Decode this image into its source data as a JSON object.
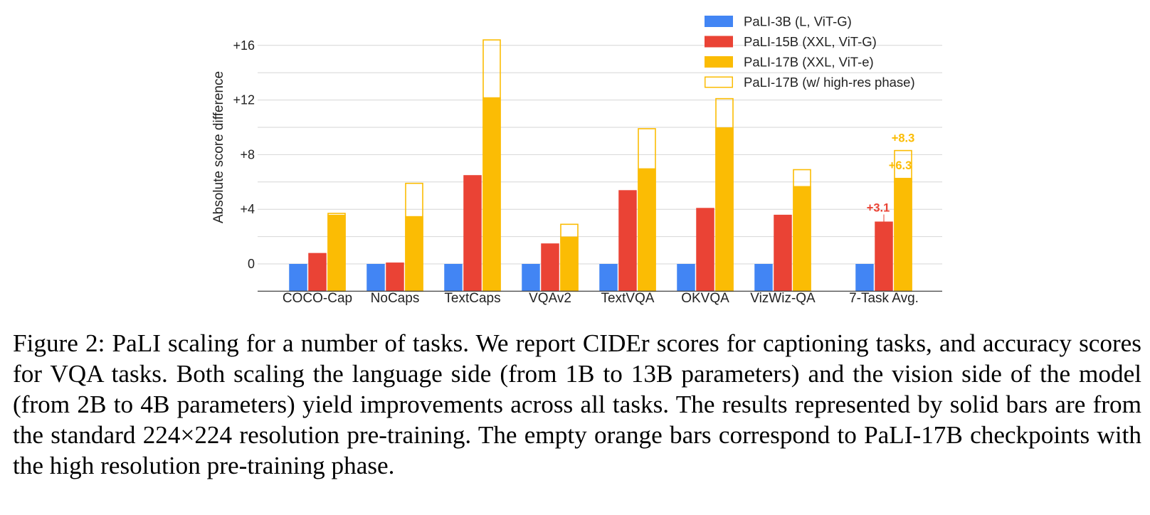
{
  "chart_data": {
    "type": "bar",
    "ylabel": "Absolute score difference",
    "xlabel": "",
    "ylim": [
      -2,
      17.6
    ],
    "yticks": [
      0,
      4,
      8,
      12,
      16
    ],
    "ytick_labels": [
      "0",
      "+4",
      "+8",
      "+12",
      "+16"
    ],
    "grid": true,
    "grid_step": 2,
    "legend_position": "top-right",
    "categories": [
      "COCO-Cap",
      "NoCaps",
      "TextCaps",
      "VQAv2",
      "TextVQA",
      "OKVQA",
      "VizWiz-QA",
      "7-Task Avg."
    ],
    "series": [
      {
        "name": "PaLI-3B (L, ViT-G)",
        "style": "solid",
        "color": "#4285F4",
        "values": [
          0,
          0,
          0,
          0,
          0,
          0,
          0,
          0
        ]
      },
      {
        "name": "PaLI-15B (XXL, ViT-G)",
        "style": "solid",
        "color": "#EA4335",
        "values": [
          0.8,
          0.1,
          6.5,
          1.5,
          5.4,
          4.1,
          3.6,
          3.1
        ]
      },
      {
        "name": "PaLI-17B (XXL, ViT-e)",
        "style": "solid",
        "color": "#FBBC04",
        "values": [
          3.6,
          3.5,
          12.2,
          2.0,
          7.0,
          10.0,
          5.7,
          6.3
        ]
      },
      {
        "name": "PaLI-17B (w/ high-res phase)",
        "style": "outline",
        "color": "#FBBC04",
        "values": [
          3.7,
          5.9,
          16.4,
          2.9,
          9.9,
          12.1,
          6.9,
          8.3
        ]
      }
    ],
    "annotations": [
      {
        "text": "+3.1",
        "category": "7-Task Avg.",
        "series": 1,
        "value": 3.1,
        "color": "#EA4335"
      },
      {
        "text": "+6.3",
        "category": "7-Task Avg.",
        "series": 2,
        "value": 6.3,
        "color": "#FBBC04"
      },
      {
        "text": "+8.3",
        "category": "7-Task Avg.",
        "series": 3,
        "value": 8.3,
        "color": "#FBBC04"
      }
    ]
  },
  "caption": "Figure 2: PaLI scaling for a number of tasks.  We report CIDEr scores for captioning tasks, and accuracy scores for VQA tasks. Both scaling the language side (from 1B to 13B parameters) and the vision side of the model (from 2B to 4B parameters) yield improvements across all tasks. The results represented by solid bars are from the standard 224×224 resolution pre-training. The empty orange bars correspond to PaLI-17B checkpoints with the high resolution pre-training phase."
}
